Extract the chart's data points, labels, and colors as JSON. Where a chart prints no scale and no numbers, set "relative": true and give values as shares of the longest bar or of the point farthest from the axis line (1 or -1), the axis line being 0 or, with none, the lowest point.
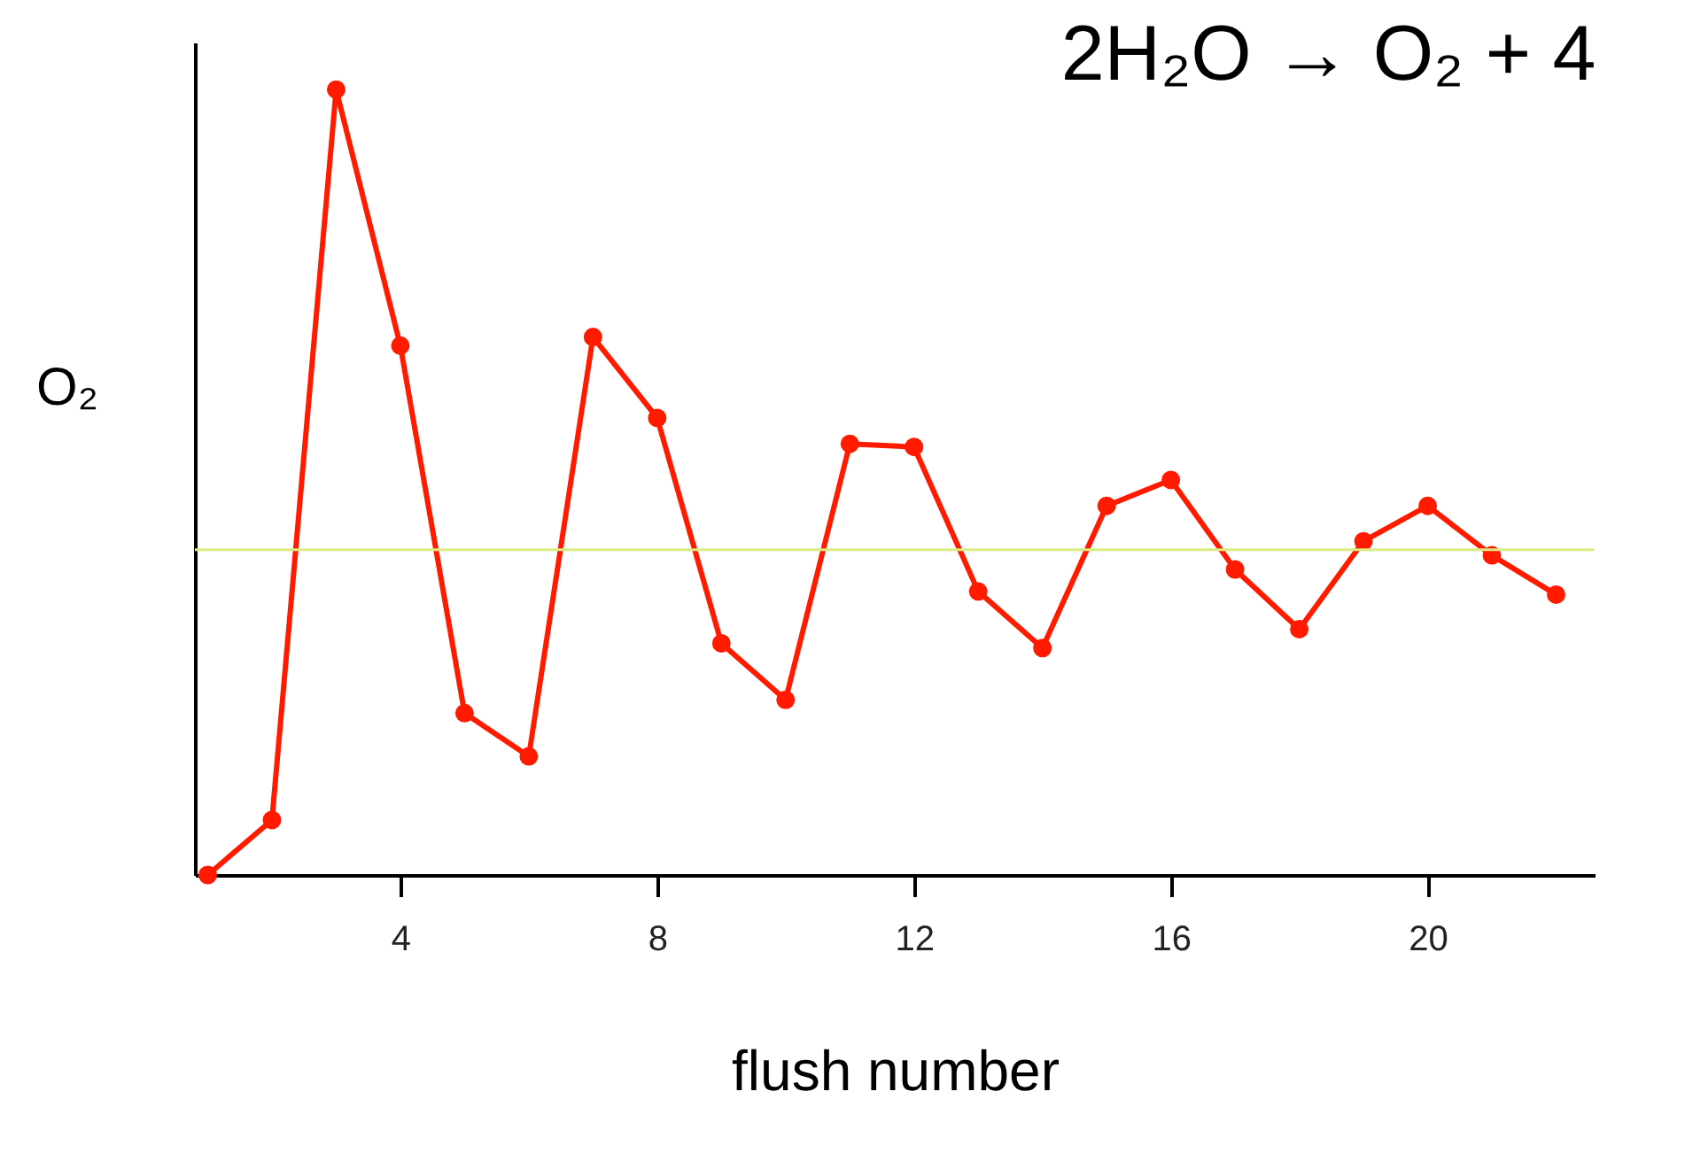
{
  "chart_data": {
    "type": "line",
    "title": "2H₂O → O₂ + 4",
    "xlabel": "flush number",
    "ylabel": "O₂",
    "relative": true,
    "x": [
      1,
      2,
      3,
      4,
      5,
      6,
      7,
      8,
      9,
      10,
      11,
      12,
      13,
      14,
      15,
      16,
      17,
      18,
      19,
      20,
      21,
      22
    ],
    "series": [
      {
        "color": "#ff1a00",
        "values": [
          0,
          0.07,
          1,
          0.674,
          0.206,
          0.151,
          0.685,
          0.582,
          0.295,
          0.223,
          0.549,
          0.545,
          0.361,
          0.289,
          0.47,
          0.503,
          0.389,
          0.313,
          0.425,
          0.47,
          0.407,
          0.357
        ]
      }
    ],
    "xlim": [
      0.8,
      22.6
    ],
    "xticks": [
      4,
      8,
      12,
      16,
      20
    ],
    "ref_lines": [
      {
        "axis": "y",
        "value": 0.414,
        "color": "#d8ec80"
      }
    ],
    "marker": "circle",
    "line_style": "solid",
    "grid": false
  }
}
